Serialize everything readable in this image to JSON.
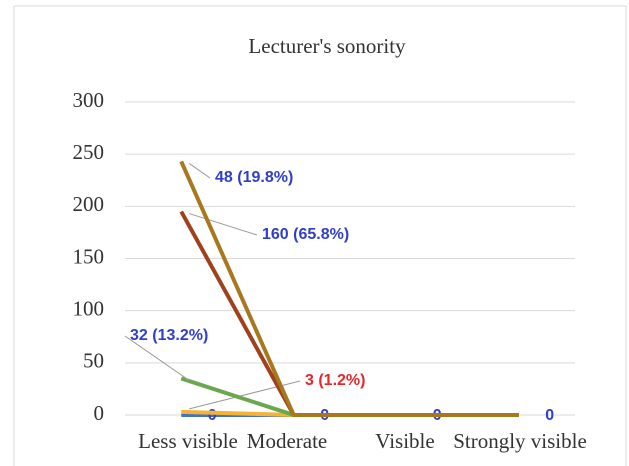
{
  "chart_data": {
    "type": "line",
    "stacked": true,
    "title": "Lecturer's sonority",
    "categories": [
      "Less visible",
      "Moderate",
      "Visible",
      "Strongly visible"
    ],
    "series": [
      {
        "color": "#4472c4",
        "values": [
          0,
          0,
          0,
          0
        ],
        "label_color": "#2f3fc8"
      },
      {
        "color": "#f5b335",
        "values": [
          3,
          0,
          0,
          0
        ],
        "value_labels": [
          "3 (1.2%)",
          null,
          null,
          null
        ],
        "label_color": "#e8262a"
      },
      {
        "color": "#6aa84f",
        "values": [
          32,
          0,
          0,
          0
        ],
        "value_labels": [
          "32 (13.2%)",
          null,
          null,
          null
        ],
        "label_color": "#2f3fc8"
      },
      {
        "color": "#a0411e",
        "values": [
          160,
          0,
          0,
          0
        ],
        "value_labels": [
          "160 (65.8%)",
          null,
          null,
          null
        ],
        "label_color": "#2f3fc8"
      },
      {
        "color": "#a8781f",
        "values": [
          48,
          0,
          0,
          0
        ],
        "value_labels": [
          "48 (19.8%)",
          null,
          null,
          null
        ],
        "label_color": "#2f3fc8"
      }
    ],
    "ylim": [
      0,
      300
    ],
    "yticks": [
      0,
      50,
      100,
      150,
      200,
      250,
      300
    ],
    "grid": true
  }
}
